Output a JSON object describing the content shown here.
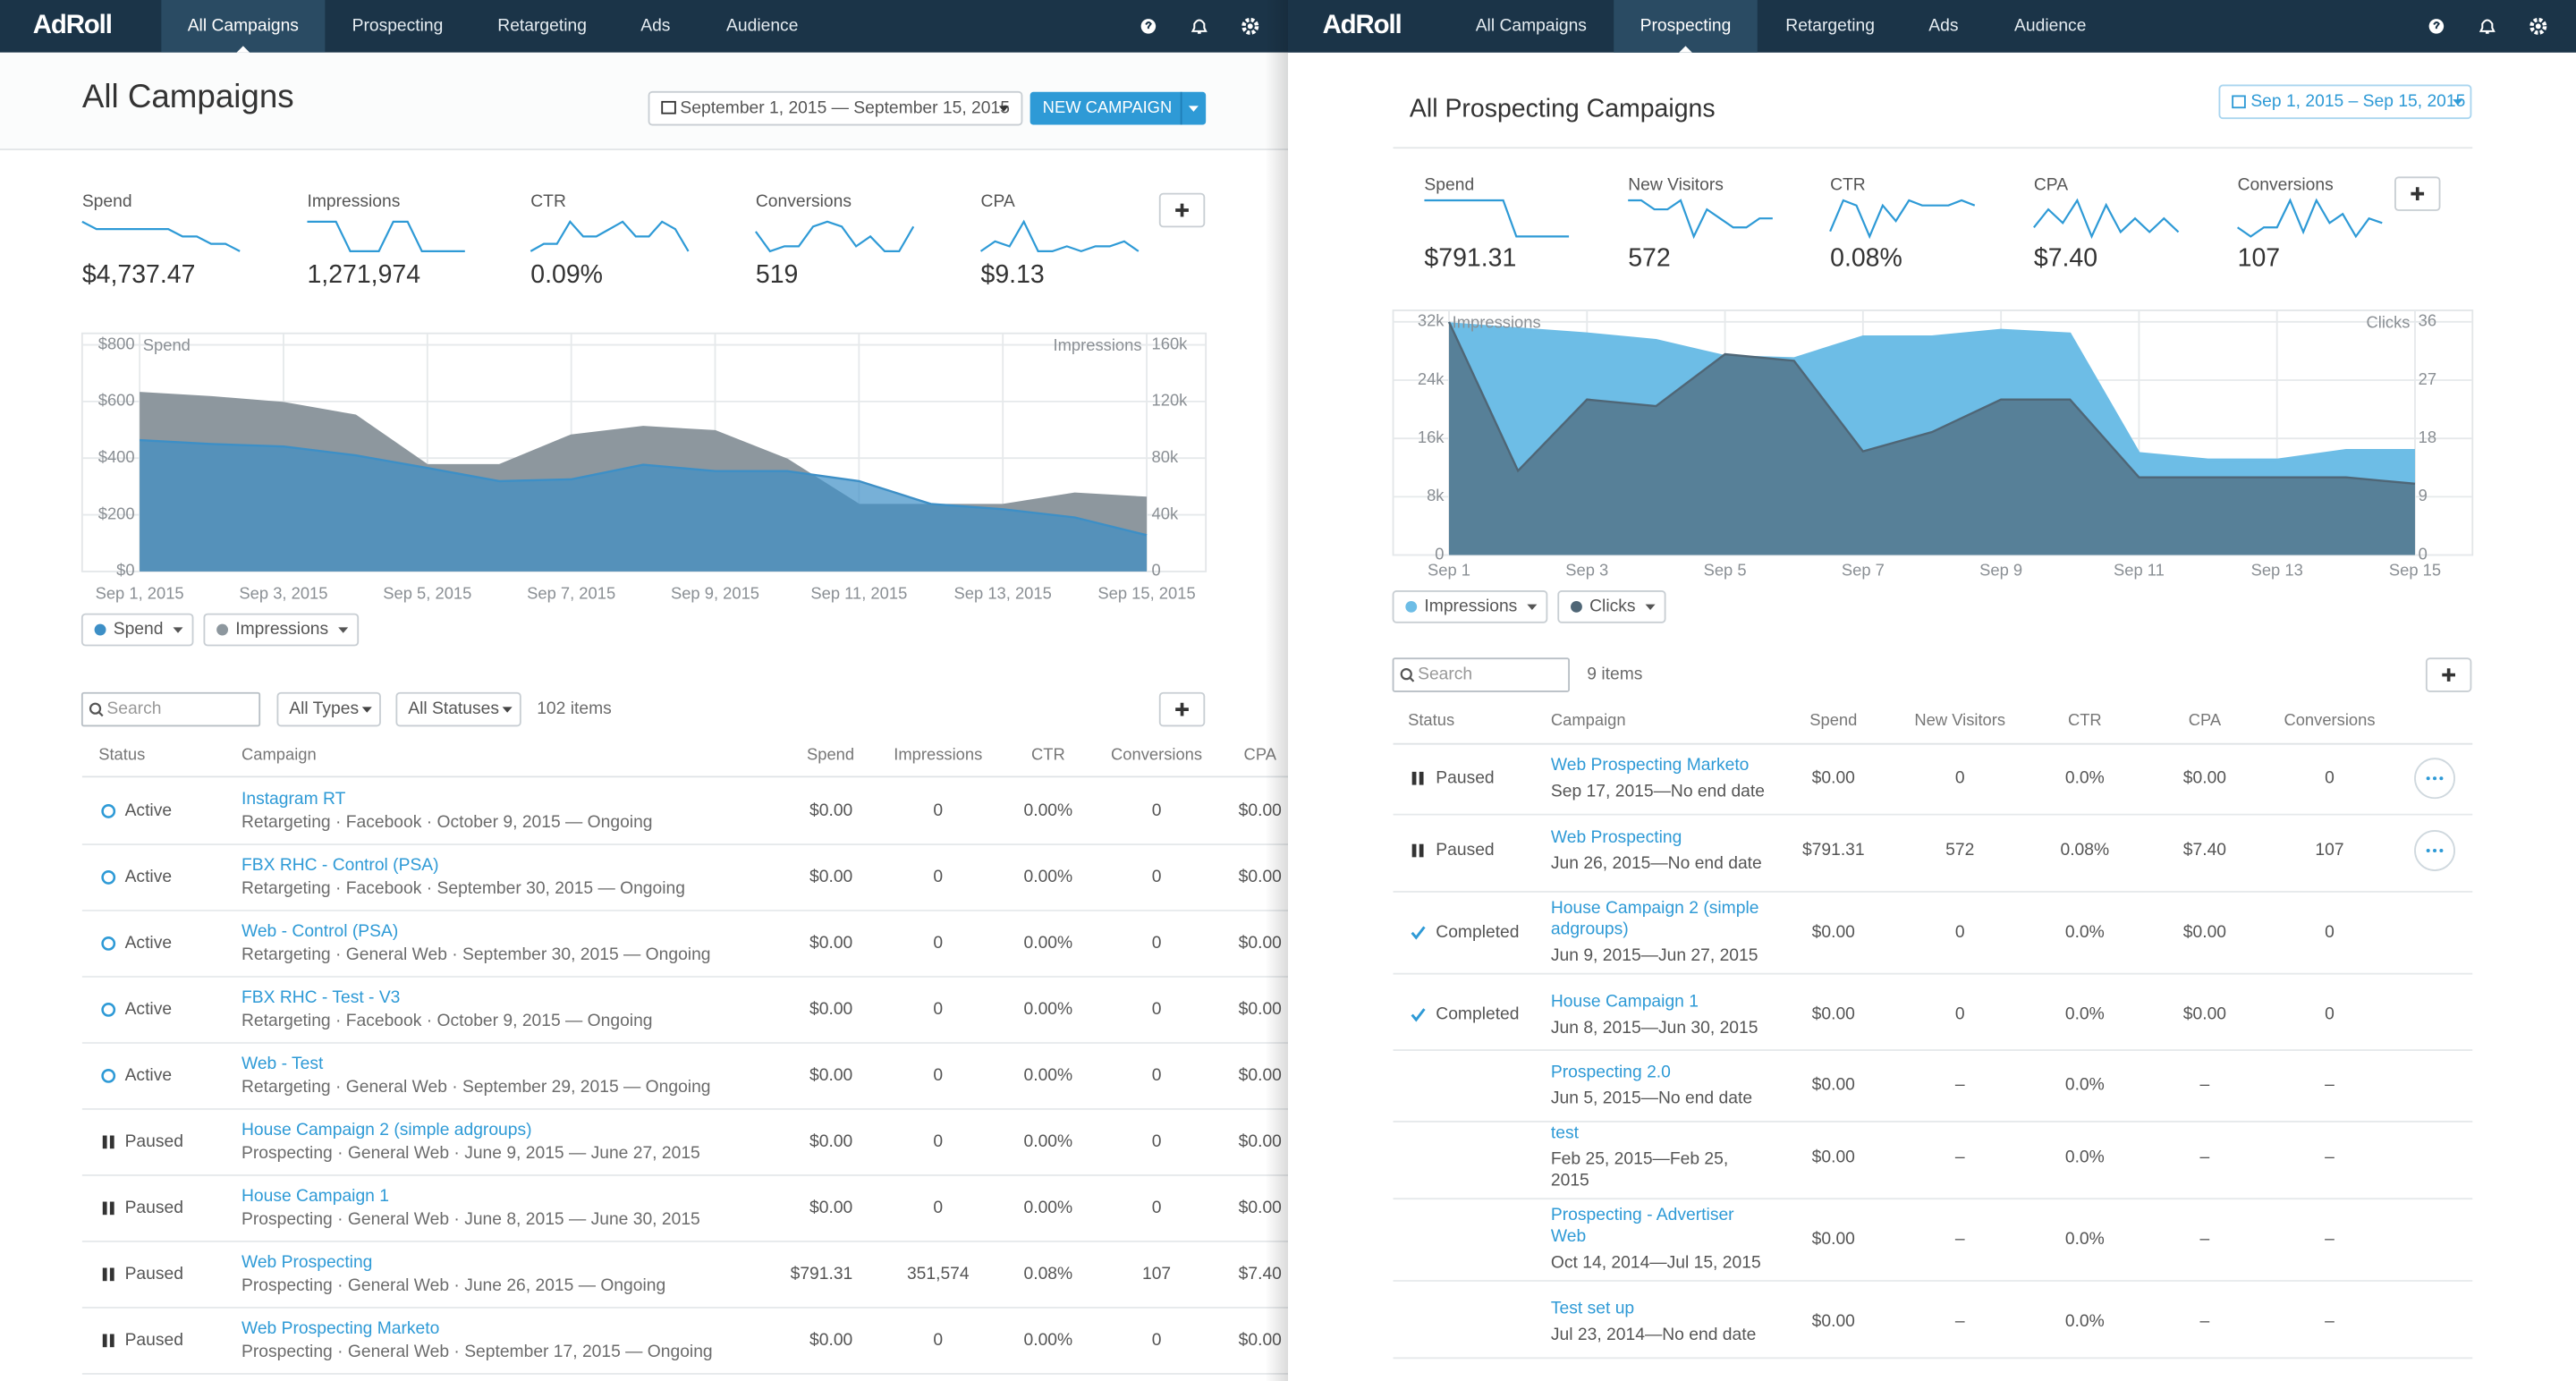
{
  "left": {
    "nav": {
      "logo": "AdRoll",
      "tabs": [
        "All Campaigns",
        "Prospecting",
        "Retargeting",
        "Ads",
        "Audience"
      ],
      "active_tab": 0
    },
    "title": "All Campaigns",
    "date_range": "September 1, 2015 — September 15, 2015",
    "new_button": "NEW CAMPAIGN",
    "metrics": [
      {
        "label": "Spend",
        "value": "$4,737.47",
        "trend": [
          7,
          6,
          6,
          6,
          6,
          6,
          6,
          5,
          5,
          4,
          4,
          3
        ]
      },
      {
        "label": "Impressions",
        "value": "1,271,974",
        "trend": [
          6,
          6,
          6,
          5,
          5,
          5,
          6,
          6,
          5,
          5,
          5,
          5
        ]
      },
      {
        "label": "CTR",
        "value": "0.09%",
        "trend": [
          5,
          6,
          6,
          9,
          7,
          7,
          8,
          9,
          7,
          7,
          9,
          8,
          5
        ]
      },
      {
        "label": "Conversions",
        "value": "519",
        "trend": [
          7,
          3,
          4,
          4,
          8,
          9,
          8,
          4,
          6,
          3,
          3,
          8
        ]
      },
      {
        "label": "CPA",
        "value": "$9.13",
        "trend": [
          3,
          5,
          4,
          9,
          3,
          3,
          4,
          3,
          4,
          4,
          5,
          3
        ]
      }
    ],
    "chart": {
      "type": "area",
      "y_label": "Spend",
      "y2_label": "Impressions",
      "categories": [
        "Sep 1, 2015",
        null,
        "Sep 3, 2015",
        null,
        "Sep 5, 2015",
        null,
        "Sep 7, 2015",
        null,
        "Sep 9, 2015",
        null,
        "Sep 11, 2015",
        null,
        "Sep 13, 2015",
        null,
        "Sep 15, 2015"
      ],
      "series": [
        {
          "name": "Spend",
          "color": "#3d8fc6",
          "values": [
            464,
            450,
            441,
            410,
            365,
            319,
            325,
            377,
            354,
            354,
            319,
            238,
            220,
            191,
            128
          ]
        },
        {
          "name": "Impressions",
          "color": "#8d979e",
          "axis": "y2",
          "values": [
            126000,
            123000,
            119000,
            110000,
            75000,
            75000,
            96000,
            102000,
            99000,
            79000,
            47000,
            47000,
            47000,
            55000,
            52000
          ]
        }
      ],
      "ylim": [
        0,
        800
      ],
      "yticks": [
        {
          "value": 0,
          "label": "$0"
        },
        {
          "value": 200,
          "label": "$200"
        },
        {
          "value": 400,
          "label": "$400"
        },
        {
          "value": 600,
          "label": "$600"
        },
        {
          "value": 800,
          "label": "$800"
        }
      ],
      "y2lim": [
        0,
        160000
      ],
      "y2ticks": [
        0,
        {
          "value": 40000,
          "label": "40k"
        },
        {
          "value": 80000,
          "label": "80k"
        },
        {
          "value": 120000,
          "label": "120k"
        },
        {
          "value": 160000,
          "label": "160k"
        }
      ],
      "grid": true
    },
    "toolbar": {
      "search": "Search",
      "filters": [
        "All Types",
        "All Statuses"
      ],
      "count": "102 items"
    },
    "table": {
      "columns": [
        "Status",
        "Campaign",
        "Spend",
        "Impressions",
        "CTR",
        "Conversions",
        "CPA"
      ],
      "rows": [
        {
          "status": "Active",
          "icon": "circle",
          "name": "Instagram RT",
          "details": "Retargeting · Facebook · October 9, 2015 — Ongoing",
          "cells": [
            "$0.00",
            "0",
            "0.00%",
            "0",
            "$0.00"
          ]
        },
        {
          "status": "Active",
          "icon": "circle",
          "name": "FBX RHC - Control (PSA)",
          "details": "Retargeting · Facebook · September 30, 2015 — Ongoing",
          "cells": [
            "$0.00",
            "0",
            "0.00%",
            "0",
            "$0.00"
          ]
        },
        {
          "status": "Active",
          "icon": "circle",
          "name": "Web - Control (PSA)",
          "details": "Retargeting · General Web · September 30, 2015 — Ongoing",
          "cells": [
            "$0.00",
            "0",
            "0.00%",
            "0",
            "$0.00"
          ]
        },
        {
          "status": "Active",
          "icon": "circle",
          "name": "FBX RHC - Test - V3",
          "details": "Retargeting · Facebook · October 9, 2015 — Ongoing",
          "cells": [
            "$0.00",
            "0",
            "0.00%",
            "0",
            "$0.00"
          ]
        },
        {
          "status": "Active",
          "icon": "circle",
          "name": "Web - Test",
          "details": "Retargeting · General Web · September 29, 2015 — Ongoing",
          "cells": [
            "$0.00",
            "0",
            "0.00%",
            "0",
            "$0.00"
          ]
        },
        {
          "status": "Paused",
          "icon": "pause",
          "name": "House Campaign 2 (simple adgroups)",
          "details": "Prospecting · General Web · June 9, 2015 — June 27, 2015",
          "cells": [
            "$0.00",
            "0",
            "0.00%",
            "0",
            "$0.00"
          ]
        },
        {
          "status": "Paused",
          "icon": "pause",
          "name": "House Campaign 1",
          "details": "Prospecting · General Web · June 8, 2015 — June 30, 2015",
          "cells": [
            "$0.00",
            "0",
            "0.00%",
            "0",
            "$0.00"
          ]
        },
        {
          "status": "Paused",
          "icon": "pause",
          "name": "Web Prospecting",
          "details": "Prospecting · General Web · June 26, 2015 — Ongoing",
          "cells": [
            "$791.31",
            "351,574",
            "0.08%",
            "107",
            "$7.40"
          ]
        },
        {
          "status": "Paused",
          "icon": "pause",
          "name": "Web Prospecting Marketo",
          "details": "Prospecting · General Web · September 17, 2015 — Ongoing",
          "cells": [
            "$0.00",
            "0",
            "0.00%",
            "0",
            "$0.00"
          ]
        }
      ]
    }
  },
  "right": {
    "nav": {
      "logo": "AdRoll",
      "tabs": [
        "All Campaigns",
        "Prospecting",
        "Retargeting",
        "Ads",
        "Audience"
      ],
      "active_tab": 1
    },
    "title": "All Prospecting Campaigns",
    "date_range": "Sep 1, 2015 – Sep 15, 2015",
    "metrics": [
      {
        "label": "Spend",
        "value": "$791.31",
        "trend": [
          9,
          9,
          9,
          9,
          9,
          9,
          9,
          2,
          2,
          2,
          2,
          2
        ]
      },
      {
        "label": "New Visitors",
        "value": "572",
        "trend": [
          7,
          7,
          6,
          6,
          7,
          3,
          6,
          5,
          4,
          4,
          5,
          5
        ]
      },
      {
        "label": "CTR",
        "value": "0.08%",
        "trend": [
          2,
          8,
          7,
          1,
          7,
          4,
          8,
          7,
          7,
          7,
          8,
          7
        ]
      },
      {
        "label": "CPA",
        "value": "$7.40",
        "trend": [
          3,
          7,
          4,
          9,
          1,
          8,
          2,
          5,
          2,
          5,
          2
        ]
      },
      {
        "label": "Conversions",
        "value": "107",
        "trend": [
          3,
          1,
          3,
          3,
          9,
          2,
          9,
          4,
          6,
          1,
          5,
          4
        ]
      }
    ],
    "chart": {
      "type": "area",
      "y_label": "Impressions",
      "y2_label": "Clicks",
      "categories": [
        "Sep 1",
        null,
        "Sep 3",
        null,
        "Sep 5",
        null,
        "Sep 7",
        null,
        "Sep 9",
        null,
        "Sep 11",
        null,
        "Sep 13",
        null,
        "Sep 15"
      ],
      "series": [
        {
          "name": "Impressions",
          "color": "#6dbde6",
          "values": [
            31800,
            31100,
            30400,
            29500,
            27300,
            27000,
            30000,
            30000,
            30900,
            30400,
            14000,
            13100,
            13100,
            14400,
            14400
          ]
        },
        {
          "name": "Clicks",
          "color": "#4f6676",
          "axis": "y2",
          "values": [
            36,
            13,
            24,
            23,
            31,
            30,
            16,
            19,
            24,
            24,
            12,
            12,
            12,
            12,
            11
          ]
        }
      ],
      "ylim": [
        0,
        32000
      ],
      "yticks": [
        0,
        {
          "value": 8000,
          "label": "8k"
        },
        {
          "value": 16000,
          "label": "16k"
        },
        {
          "value": 24000,
          "label": "24k"
        },
        {
          "value": 32000,
          "label": "32k"
        }
      ],
      "y2lim": [
        0,
        36
      ],
      "y2ticks": [
        0,
        9,
        18,
        27,
        36
      ],
      "grid": true
    },
    "toolbar": {
      "search": "Search",
      "count": "9 items"
    },
    "table": {
      "columns": [
        "Status",
        "Campaign",
        "Spend",
        "New Visitors",
        "CTR",
        "CPA",
        "Conversions"
      ],
      "rows": [
        {
          "status": "Paused",
          "icon": "pause",
          "menu": true,
          "name": "Web Prospecting Marketo",
          "dates": "Sep 17, 2015—No end date",
          "cells": [
            "$0.00",
            "0",
            "0.0%",
            "$0.00",
            "0"
          ]
        },
        {
          "status": "Paused",
          "icon": "pause",
          "menu": true,
          "name": "Web Prospecting",
          "dates": "Jun 26, 2015—No end date",
          "cells": [
            "$791.31",
            "572",
            "0.08%",
            "$7.40",
            "107"
          ]
        },
        {
          "status": "Completed",
          "icon": "check",
          "name": "House Campaign 2 (simple adgroups)",
          "dates": "Jun 9, 2015—Jun 27, 2015",
          "cells": [
            "$0.00",
            "0",
            "0.0%",
            "$0.00",
            "0"
          ]
        },
        {
          "status": "Completed",
          "icon": "check",
          "name": "House Campaign 1",
          "dates": "Jun 8, 2015—Jun 30, 2015",
          "cells": [
            "$0.00",
            "0",
            "0.0%",
            "$0.00",
            "0"
          ]
        },
        {
          "name": "Prospecting 2.0",
          "dates": "Jun 5, 2015—No end date",
          "cells": [
            "$0.00",
            "–",
            "0.0%",
            "–",
            "–"
          ]
        },
        {
          "name": "test",
          "dates": "Feb 25, 2015—Feb 25, 2015",
          "cells": [
            "$0.00",
            "–",
            "0.0%",
            "–",
            "–"
          ]
        },
        {
          "name": "Prospecting - Advertiser Web",
          "dates": "Oct 14, 2014—Jul 15, 2015",
          "cells": [
            "$0.00",
            "–",
            "0.0%",
            "–",
            "–"
          ]
        },
        {
          "name": "Test set up",
          "dates": "Jul 23, 2014—No end date",
          "cells": [
            "$0.00",
            "–",
            "0.0%",
            "–",
            "–"
          ]
        }
      ]
    }
  }
}
